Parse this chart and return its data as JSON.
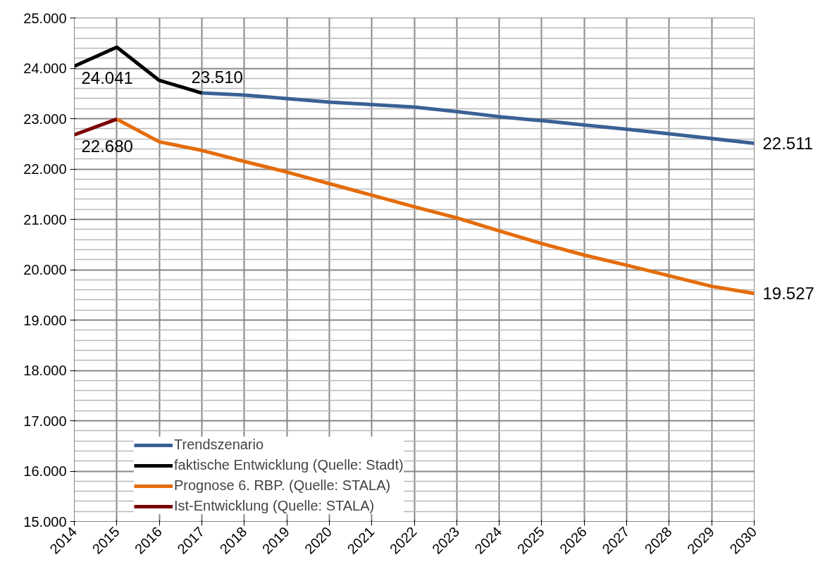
{
  "chart_data": {
    "type": "line",
    "xlim": [
      2014,
      2030
    ],
    "xticks": [
      2014,
      2015,
      2016,
      2017,
      2018,
      2019,
      2020,
      2021,
      2022,
      2023,
      2024,
      2025,
      2026,
      2027,
      2028,
      2029,
      2030
    ],
    "ylim": [
      15000,
      25000
    ],
    "yticks": [
      {
        "value": 15000,
        "label": "15.000"
      },
      {
        "value": 16000,
        "label": "16.000"
      },
      {
        "value": 17000,
        "label": "17.000"
      },
      {
        "value": 18000,
        "label": "18.000"
      },
      {
        "value": 19000,
        "label": "19.000"
      },
      {
        "value": 20000,
        "label": "20.000"
      },
      {
        "value": 21000,
        "label": "21.000"
      },
      {
        "value": 22000,
        "label": "22.000"
      },
      {
        "value": 23000,
        "label": "23.000"
      },
      {
        "value": 24000,
        "label": "24.000"
      },
      {
        "value": 25000,
        "label": "25.000"
      }
    ],
    "grid": true,
    "legend": "bottom left",
    "marker": "none",
    "line_style": "solid",
    "series": [
      {
        "name": "Trendszenario",
        "color": "#3a6195",
        "x": [
          2017,
          2018,
          2019,
          2020,
          2021,
          2022,
          2023,
          2024,
          2025,
          2026,
          2027,
          2028,
          2029,
          2030
        ],
        "values": [
          23510,
          23470,
          23400,
          23330,
          23280,
          23230,
          23140,
          23040,
          22960,
          22875,
          22790,
          22700,
          22605,
          22511
        ],
        "value_labels": [
          null,
          null,
          null,
          null,
          null,
          null,
          null,
          null,
          null,
          null,
          null,
          null,
          null,
          "22.511"
        ]
      },
      {
        "name": "faktische Entwicklung (Quelle: Stadt)",
        "color": "#000000",
        "x": [
          2014,
          2015,
          2016,
          2017
        ],
        "values": [
          24041,
          24420,
          23760,
          23510
        ],
        "value_labels": [
          "24.041",
          null,
          null,
          "23.510"
        ]
      },
      {
        "name": "Prognose 6. RBP. (Quelle: STALA)",
        "color": "#e46c0a",
        "x": [
          2015,
          2016,
          2017,
          2018,
          2019,
          2020,
          2021,
          2022,
          2023,
          2024,
          2025,
          2026,
          2027,
          2028,
          2029,
          2030
        ],
        "values": [
          22990,
          22540,
          22370,
          22150,
          21940,
          21710,
          21480,
          21250,
          21030,
          20770,
          20520,
          20290,
          20090,
          19880,
          19670,
          19527
        ],
        "value_labels": [
          null,
          null,
          null,
          null,
          null,
          null,
          null,
          null,
          null,
          null,
          null,
          null,
          null,
          null,
          null,
          "19.527"
        ]
      },
      {
        "name": "Ist-Entwicklung (Quelle: STALA)",
        "color": "#7b0000",
        "x": [
          2014,
          2015
        ],
        "values": [
          22680,
          22990
        ],
        "value_labels": [
          "22.680",
          null
        ]
      }
    ]
  }
}
